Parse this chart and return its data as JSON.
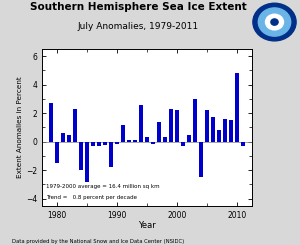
{
  "title": "Southern Hemisphere Sea Ice Extent",
  "subtitle": "July Anomalies, 1979-2011",
  "xlabel": "Year",
  "ylabel": "Extent Anomalies in Percent",
  "footnote": "Data provided by the National Snow and Ice Data Center (NSIDC)",
  "legend_line1": "1979-2000 average = 16.4 million sq km",
  "legend_line2": "Trend =   0.8 percent per decade",
  "years": [
    1979,
    1980,
    1981,
    1982,
    1983,
    1984,
    1985,
    1986,
    1987,
    1988,
    1989,
    1990,
    1991,
    1992,
    1993,
    1994,
    1995,
    1996,
    1997,
    1998,
    1999,
    2000,
    2001,
    2002,
    2003,
    2004,
    2005,
    2006,
    2007,
    2008,
    2009,
    2010,
    2011
  ],
  "values": [
    2.7,
    -1.5,
    0.6,
    0.5,
    2.3,
    -2.0,
    -2.8,
    -0.3,
    -0.3,
    -0.2,
    -1.8,
    -0.15,
    1.2,
    0.15,
    0.1,
    2.6,
    0.35,
    -0.15,
    1.4,
    0.3,
    2.3,
    2.2,
    -0.3,
    0.5,
    3.0,
    -2.5,
    2.2,
    1.7,
    0.8,
    1.6,
    1.5,
    4.8,
    -0.3
  ],
  "bar_color": "#0000CC",
  "bg_color": "#d8d8d8",
  "plot_bg_color": "#ffffff",
  "ylim": [
    -4.5,
    6.5
  ],
  "yticks": [
    -4,
    -2,
    0,
    2,
    4,
    6
  ],
  "xlim": [
    1977.5,
    2012.5
  ],
  "xticks": [
    1980,
    1990,
    2000,
    2010
  ]
}
